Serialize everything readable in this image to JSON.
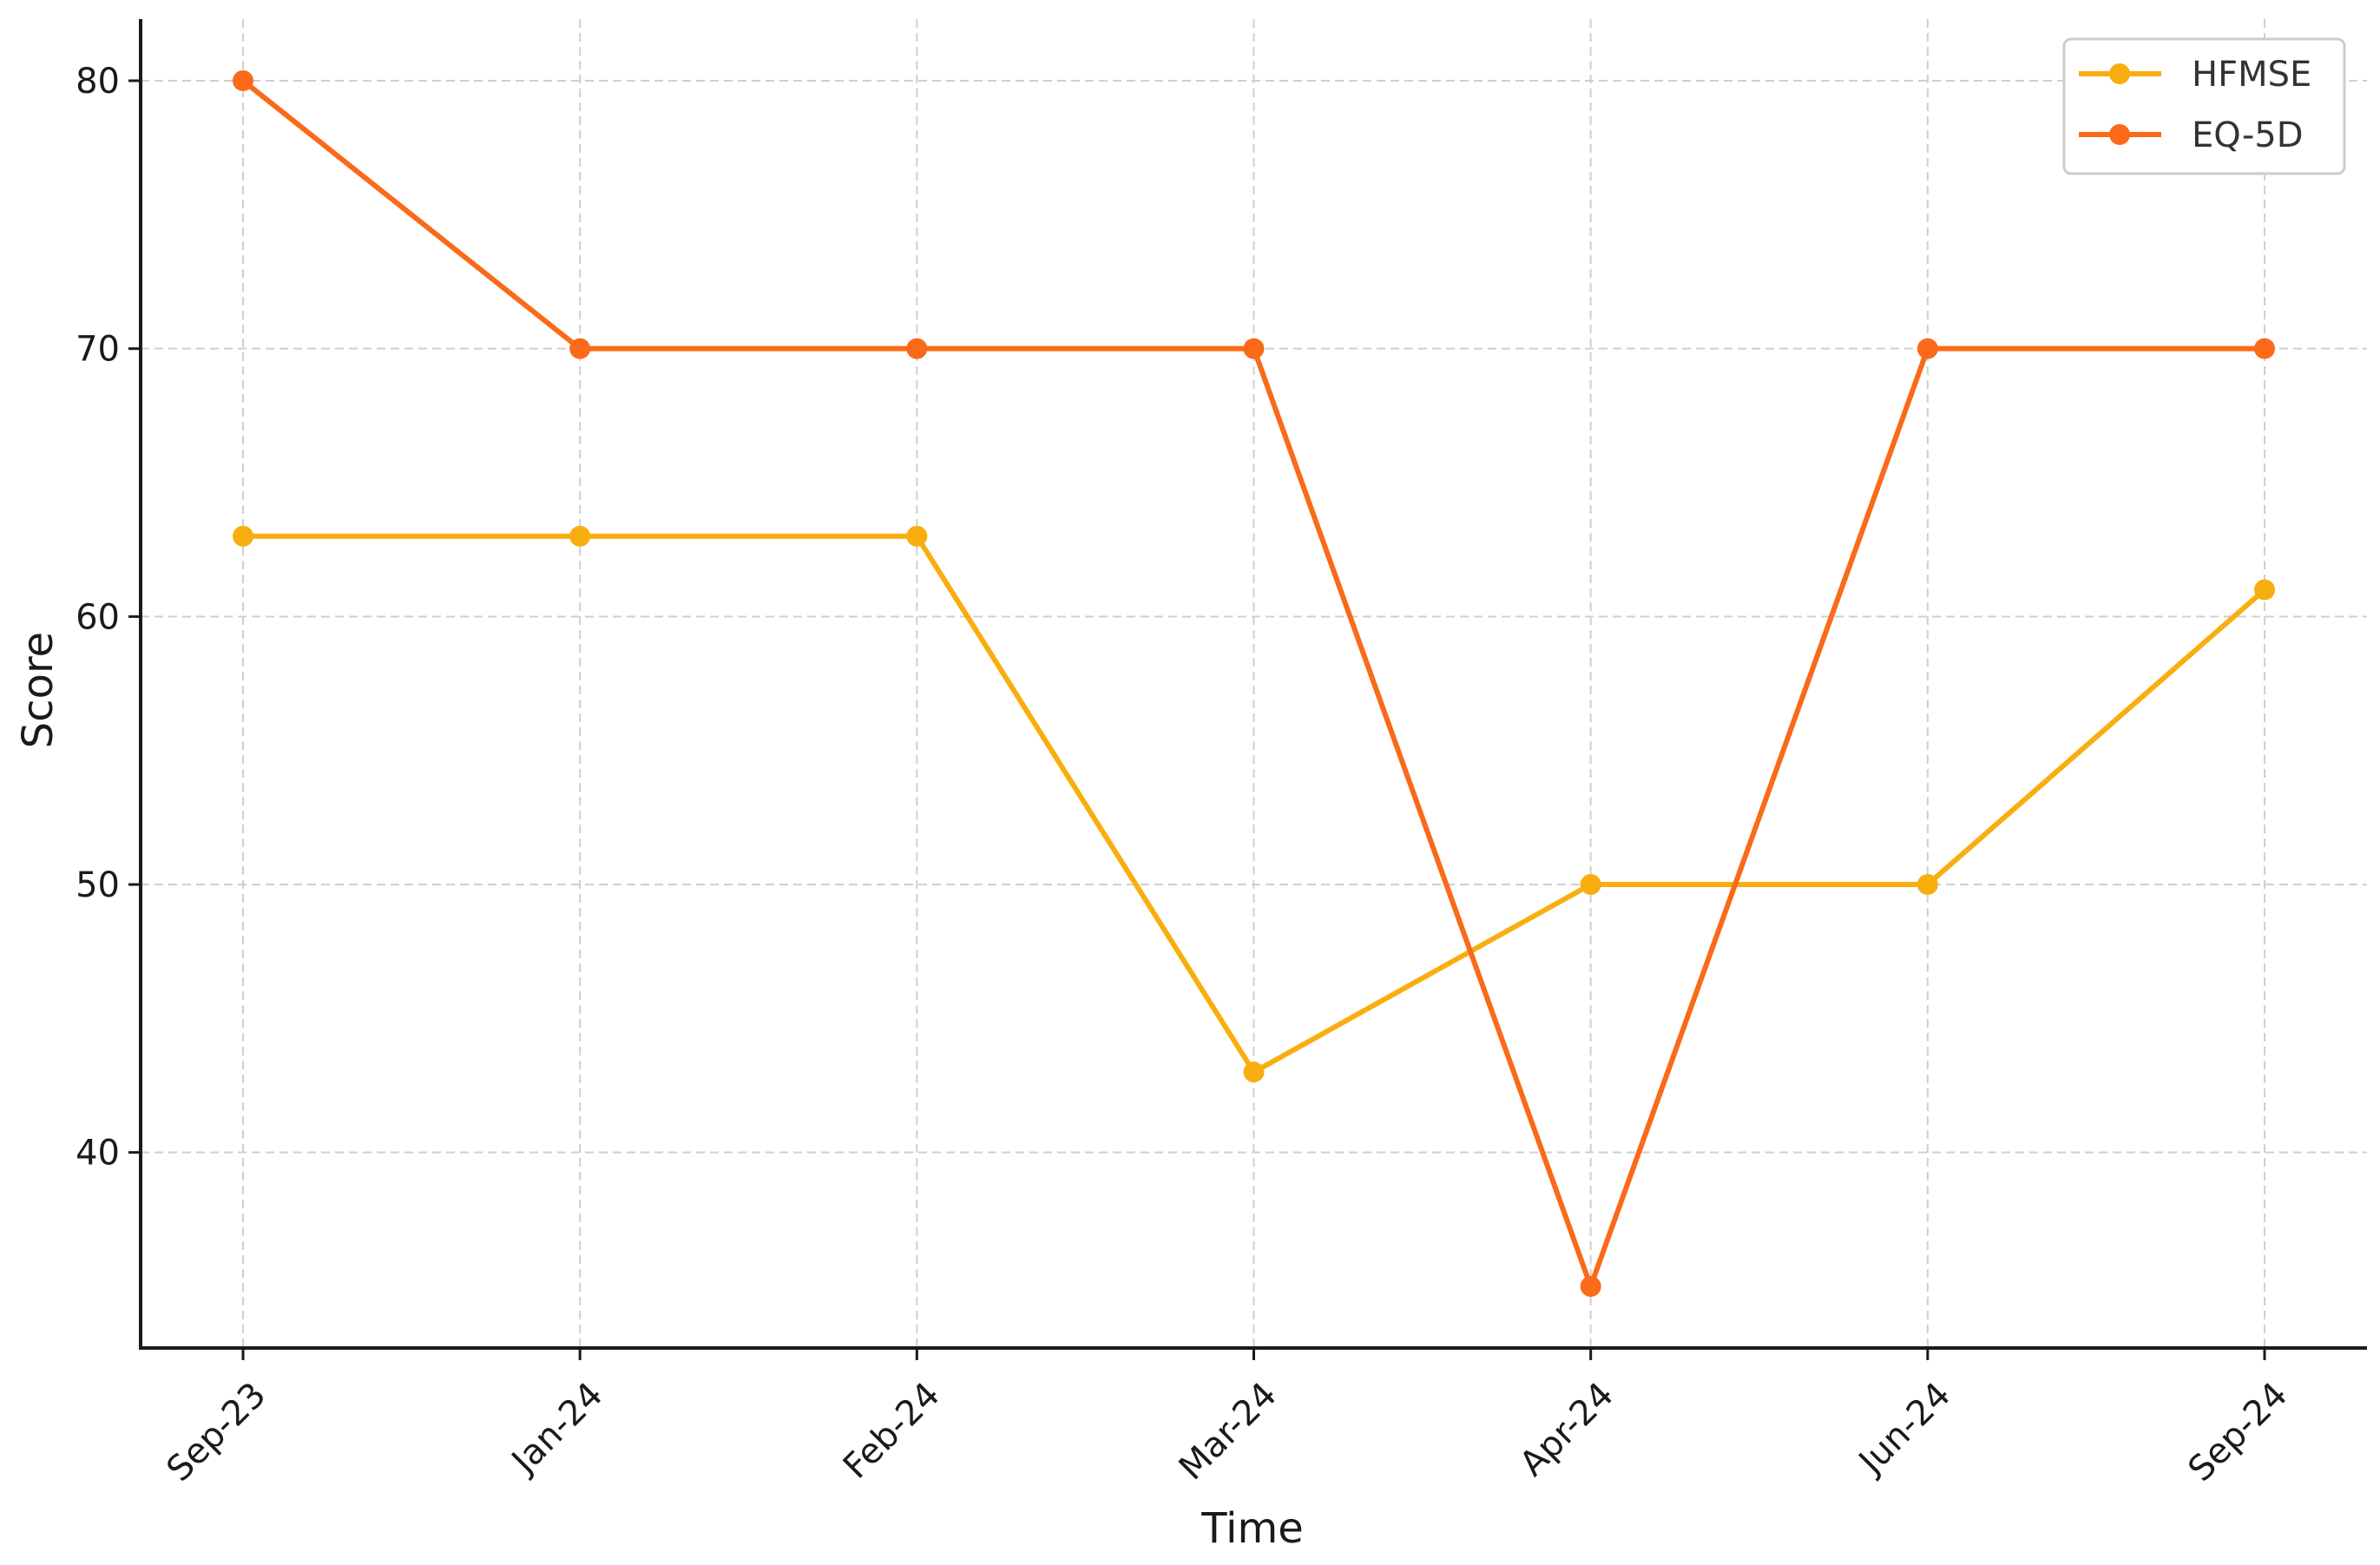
{
  "chart_data": {
    "type": "line",
    "title": "",
    "xlabel": "Time",
    "ylabel": "Score",
    "categories": [
      "Sep-23",
      "Jan-24",
      "Feb-24",
      "Mar-24",
      "Apr-24",
      "Jun-24",
      "Sep-24"
    ],
    "yticks": [
      "40",
      "50",
      "60",
      "70",
      "80"
    ],
    "ylim": [
      32.7,
      82.3
    ],
    "grid": true,
    "legend_position": "top-right",
    "series": [
      {
        "name": "HFMSE",
        "color": "#F9AE10",
        "values": [
          63,
          63,
          63,
          43,
          50,
          50,
          61
        ]
      },
      {
        "name": "EQ-5D",
        "color": "#FA6A19",
        "values": [
          80,
          70,
          70,
          70,
          35,
          70,
          70
        ]
      }
    ]
  }
}
